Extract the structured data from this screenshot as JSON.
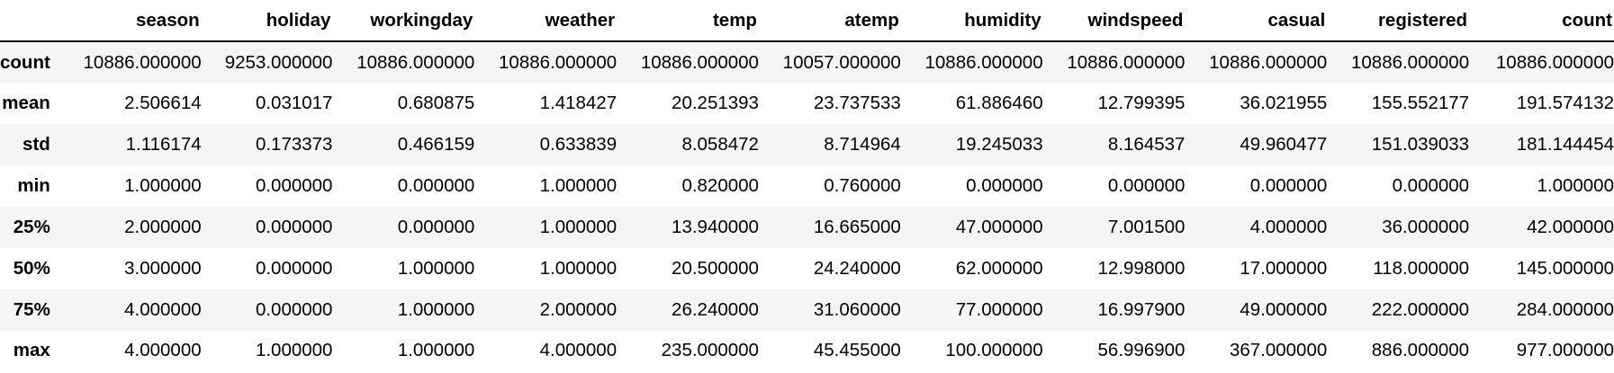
{
  "table": {
    "columns": [
      "season",
      "holiday",
      "workingday",
      "weather",
      "temp",
      "atemp",
      "humidity",
      "windspeed",
      "casual",
      "registered",
      "count"
    ],
    "rows": [
      {
        "label": "count",
        "values": [
          "10886.000000",
          "9253.000000",
          "10886.000000",
          "10886.000000",
          "10886.000000",
          "10057.000000",
          "10886.000000",
          "10886.000000",
          "10886.000000",
          "10886.000000",
          "10886.000000"
        ]
      },
      {
        "label": "mean",
        "values": [
          "2.506614",
          "0.031017",
          "0.680875",
          "1.418427",
          "20.251393",
          "23.737533",
          "61.886460",
          "12.799395",
          "36.021955",
          "155.552177",
          "191.574132"
        ]
      },
      {
        "label": "std",
        "values": [
          "1.116174",
          "0.173373",
          "0.466159",
          "0.633839",
          "8.058472",
          "8.714964",
          "19.245033",
          "8.164537",
          "49.960477",
          "151.039033",
          "181.144454"
        ]
      },
      {
        "label": "min",
        "values": [
          "1.000000",
          "0.000000",
          "0.000000",
          "1.000000",
          "0.820000",
          "0.760000",
          "0.000000",
          "0.000000",
          "0.000000",
          "0.000000",
          "1.000000"
        ]
      },
      {
        "label": "25%",
        "values": [
          "2.000000",
          "0.000000",
          "0.000000",
          "1.000000",
          "13.940000",
          "16.665000",
          "47.000000",
          "7.001500",
          "4.000000",
          "36.000000",
          "42.000000"
        ]
      },
      {
        "label": "50%",
        "values": [
          "3.000000",
          "0.000000",
          "1.000000",
          "1.000000",
          "20.500000",
          "24.240000",
          "62.000000",
          "12.998000",
          "17.000000",
          "118.000000",
          "145.000000"
        ]
      },
      {
        "label": "75%",
        "values": [
          "4.000000",
          "0.000000",
          "1.000000",
          "2.000000",
          "26.240000",
          "31.060000",
          "77.000000",
          "16.997900",
          "49.000000",
          "222.000000",
          "284.000000"
        ]
      },
      {
        "label": "max",
        "values": [
          "4.000000",
          "1.000000",
          "1.000000",
          "4.000000",
          "235.000000",
          "45.455000",
          "100.000000",
          "56.996900",
          "367.000000",
          "886.000000",
          "977.000000"
        ]
      }
    ]
  },
  "colors": {
    "row_stripe": "#f5f5f5",
    "header_rule": "#000000"
  }
}
